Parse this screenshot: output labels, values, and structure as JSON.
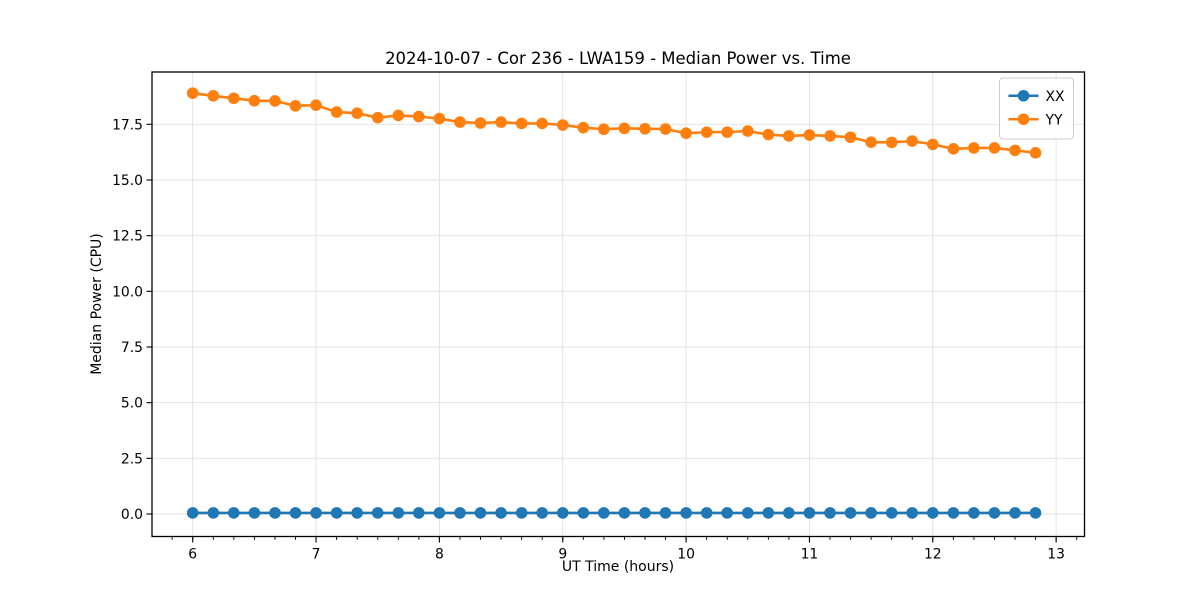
{
  "chart_data": {
    "type": "line",
    "title": "2024-10-07 - Cor 236 - LWA159 - Median Power vs. Time",
    "xlabel": "UT Time (hours)",
    "ylabel": "Median Power (CPU)",
    "xlim": [
      5.67,
      13.23
    ],
    "ylim": [
      -1.01,
      19.85
    ],
    "x_ticks": [
      6,
      7,
      8,
      9,
      10,
      11,
      12,
      13
    ],
    "x_tick_labels": [
      "6",
      "7",
      "8",
      "9",
      "10",
      "11",
      "12",
      "13"
    ],
    "x_minor_tick_step": 0.16667,
    "y_ticks": [
      0.0,
      2.5,
      5.0,
      7.5,
      10.0,
      12.5,
      15.0,
      17.5
    ],
    "y_tick_labels": [
      "0.0",
      "2.5",
      "5.0",
      "7.5",
      "10.0",
      "12.5",
      "15.0",
      "17.5"
    ],
    "grid": true,
    "grid_color": "#e0e0e0",
    "legend_position": "upper right",
    "marker": "o",
    "x": [
      6.0,
      6.167,
      6.333,
      6.5,
      6.667,
      6.833,
      7.0,
      7.167,
      7.333,
      7.5,
      7.667,
      7.833,
      8.0,
      8.167,
      8.333,
      8.5,
      8.667,
      8.833,
      9.0,
      9.167,
      9.333,
      9.5,
      9.667,
      9.833,
      10.0,
      10.167,
      10.333,
      10.5,
      10.667,
      10.833,
      11.0,
      11.167,
      11.333,
      11.5,
      11.667,
      11.833,
      12.0,
      12.167,
      12.333,
      12.5,
      12.667,
      12.833
    ],
    "series": [
      {
        "name": "XX",
        "color": "#1f77b4",
        "values": [
          0.05,
          0.05,
          0.05,
          0.05,
          0.05,
          0.05,
          0.05,
          0.05,
          0.05,
          0.05,
          0.05,
          0.05,
          0.05,
          0.05,
          0.05,
          0.05,
          0.05,
          0.05,
          0.05,
          0.05,
          0.05,
          0.05,
          0.05,
          0.05,
          0.05,
          0.05,
          0.05,
          0.05,
          0.05,
          0.05,
          0.05,
          0.05,
          0.05,
          0.05,
          0.05,
          0.05,
          0.05,
          0.05,
          0.05,
          0.05,
          0.05,
          0.05
        ]
      },
      {
        "name": "YY",
        "color": "#ff7f0e",
        "values": [
          18.9,
          18.78,
          18.67,
          18.56,
          18.55,
          18.33,
          18.36,
          18.05,
          18.0,
          17.8,
          17.9,
          17.85,
          17.76,
          17.6,
          17.56,
          17.6,
          17.54,
          17.54,
          17.47,
          17.35,
          17.28,
          17.32,
          17.3,
          17.29,
          17.1,
          17.15,
          17.15,
          17.2,
          17.04,
          16.98,
          17.02,
          16.98,
          16.92,
          16.7,
          16.69,
          16.75,
          16.6,
          16.4,
          16.44,
          16.44,
          16.33,
          16.22
        ]
      }
    ]
  }
}
